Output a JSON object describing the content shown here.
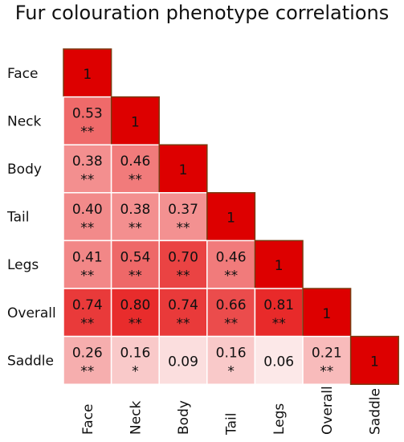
{
  "chart_data": {
    "type": "heatmap",
    "title": "Fur colouration phenotype correlations",
    "xlabel": "",
    "ylabel": "",
    "rows": [
      "Face",
      "Neck",
      "Body",
      "Tail",
      "Legs",
      "Overall",
      "Saddle"
    ],
    "columns": [
      "Face",
      "Neck",
      "Body",
      "Tail",
      "Legs",
      "Overall",
      "Saddle"
    ],
    "layout": "lower-triangle",
    "color_scale": {
      "min_color": "#ffffff",
      "max_color": "#e30000",
      "range": [
        0,
        1
      ]
    },
    "diagonal_border_color": "#7a3a10",
    "cells": [
      {
        "row": "Face",
        "col": "Face",
        "value": 1,
        "label": "1",
        "significance": ""
      },
      {
        "row": "Neck",
        "col": "Face",
        "value": 0.53,
        "label": "0.53",
        "significance": "**"
      },
      {
        "row": "Neck",
        "col": "Neck",
        "value": 1,
        "label": "1",
        "significance": ""
      },
      {
        "row": "Body",
        "col": "Face",
        "value": 0.38,
        "label": "0.38",
        "significance": "**"
      },
      {
        "row": "Body",
        "col": "Neck",
        "value": 0.46,
        "label": "0.46",
        "significance": "**"
      },
      {
        "row": "Body",
        "col": "Body",
        "value": 1,
        "label": "1",
        "significance": ""
      },
      {
        "row": "Tail",
        "col": "Face",
        "value": 0.4,
        "label": "0.40",
        "significance": "**"
      },
      {
        "row": "Tail",
        "col": "Neck",
        "value": 0.38,
        "label": "0.38",
        "significance": "**"
      },
      {
        "row": "Tail",
        "col": "Body",
        "value": 0.37,
        "label": "0.37",
        "significance": "**"
      },
      {
        "row": "Tail",
        "col": "Tail",
        "value": 1,
        "label": "1",
        "significance": ""
      },
      {
        "row": "Legs",
        "col": "Face",
        "value": 0.41,
        "label": "0.41",
        "significance": "**"
      },
      {
        "row": "Legs",
        "col": "Neck",
        "value": 0.54,
        "label": "0.54",
        "significance": "**"
      },
      {
        "row": "Legs",
        "col": "Body",
        "value": 0.7,
        "label": "0.70",
        "significance": "**"
      },
      {
        "row": "Legs",
        "col": "Tail",
        "value": 0.46,
        "label": "0.46",
        "significance": "**"
      },
      {
        "row": "Legs",
        "col": "Legs",
        "value": 1,
        "label": "1",
        "significance": ""
      },
      {
        "row": "Overall",
        "col": "Face",
        "value": 0.74,
        "label": "0.74",
        "significance": "**"
      },
      {
        "row": "Overall",
        "col": "Neck",
        "value": 0.8,
        "label": "0.80",
        "significance": "**"
      },
      {
        "row": "Overall",
        "col": "Body",
        "value": 0.74,
        "label": "0.74",
        "significance": "**"
      },
      {
        "row": "Overall",
        "col": "Tail",
        "value": 0.66,
        "label": "0.66",
        "significance": "**"
      },
      {
        "row": "Overall",
        "col": "Legs",
        "value": 0.81,
        "label": "0.81",
        "significance": "**"
      },
      {
        "row": "Overall",
        "col": "Overall",
        "value": 1,
        "label": "1",
        "significance": ""
      },
      {
        "row": "Saddle",
        "col": "Face",
        "value": 0.26,
        "label": "0.26",
        "significance": "**"
      },
      {
        "row": "Saddle",
        "col": "Neck",
        "value": 0.16,
        "label": "0.16",
        "significance": "*"
      },
      {
        "row": "Saddle",
        "col": "Body",
        "value": 0.09,
        "label": "0.09",
        "significance": ""
      },
      {
        "row": "Saddle",
        "col": "Tail",
        "value": 0.16,
        "label": "0.16",
        "significance": "*"
      },
      {
        "row": "Saddle",
        "col": "Legs",
        "value": 0.06,
        "label": "0.06",
        "significance": ""
      },
      {
        "row": "Saddle",
        "col": "Overall",
        "value": 0.21,
        "label": "0.21",
        "significance": "**"
      },
      {
        "row": "Saddle",
        "col": "Saddle",
        "value": 1,
        "label": "1",
        "significance": ""
      }
    ]
  }
}
